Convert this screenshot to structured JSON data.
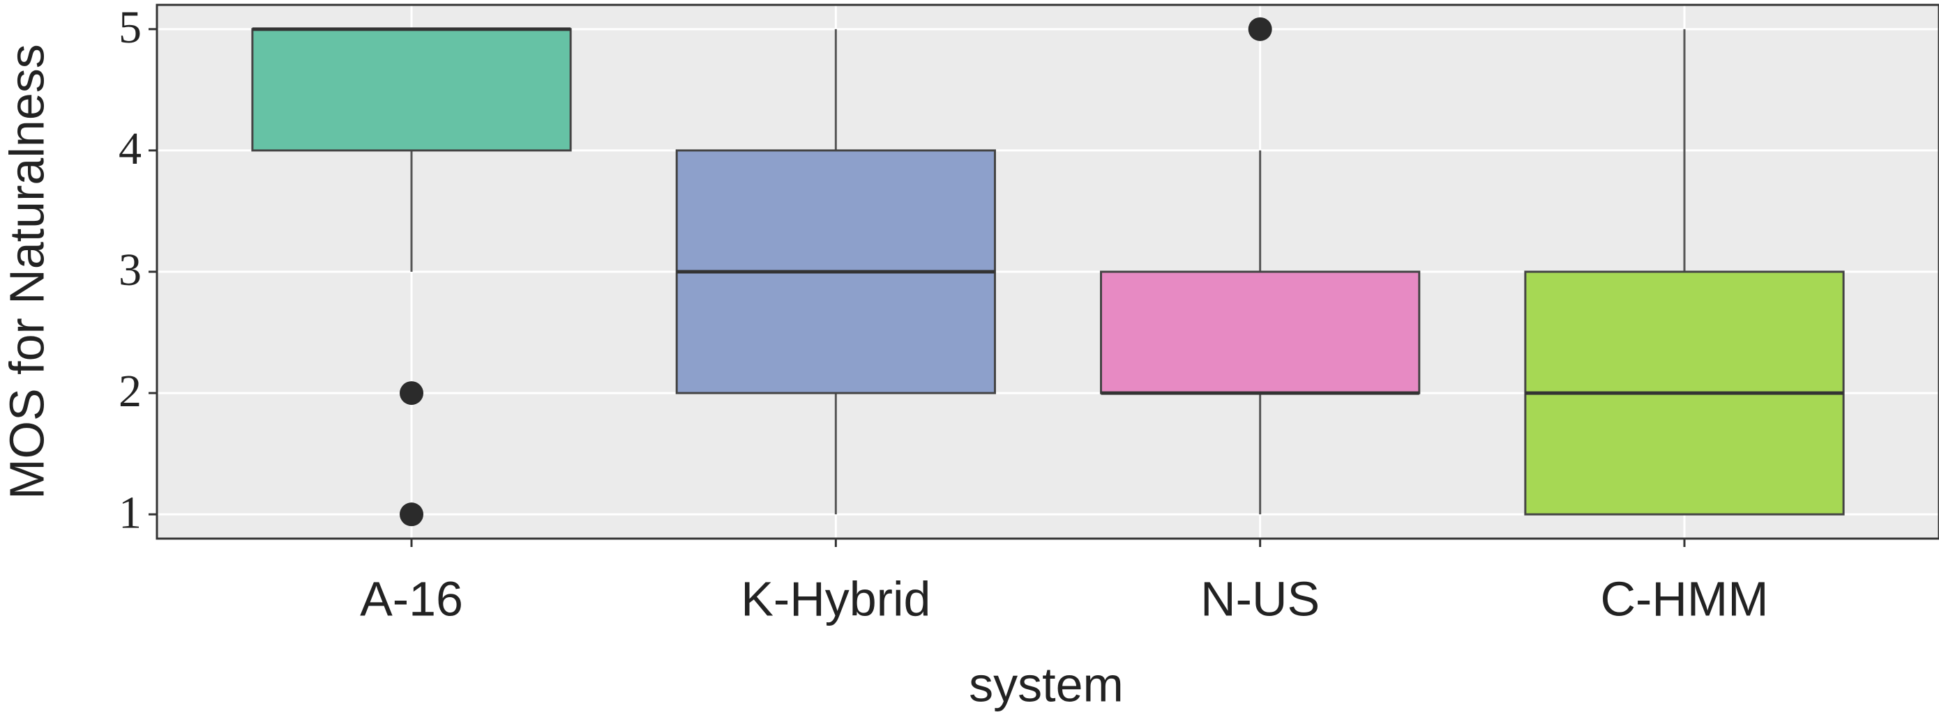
{
  "chart_data": {
    "type": "box",
    "x_label": "system",
    "y_label": "MOS for Naturalness",
    "categories": [
      "A-16",
      "K-Hybrid",
      "N-US",
      "C-HMM"
    ],
    "boxes": [
      {
        "low": 3,
        "q1": 4,
        "median": 5,
        "q3": 5,
        "high": 5,
        "outliers": [
          2,
          1
        ],
        "color": "#66c2a5"
      },
      {
        "low": 1,
        "q1": 2,
        "median": 3,
        "q3": 4,
        "high": 5,
        "outliers": [],
        "color": "#8da0cb"
      },
      {
        "low": 1,
        "q1": 2,
        "median": 2,
        "q3": 3,
        "high": 4,
        "outliers": [
          5
        ],
        "color": "#e78ac3"
      },
      {
        "low": 1,
        "q1": 1,
        "median": 2,
        "q3": 3,
        "high": 5,
        "outliers": [],
        "color": "#a6d854"
      }
    ],
    "ylim": [
      0.8,
      5.2
    ],
    "yticks": [
      1,
      2,
      3,
      4,
      5
    ],
    "grid": true
  }
}
